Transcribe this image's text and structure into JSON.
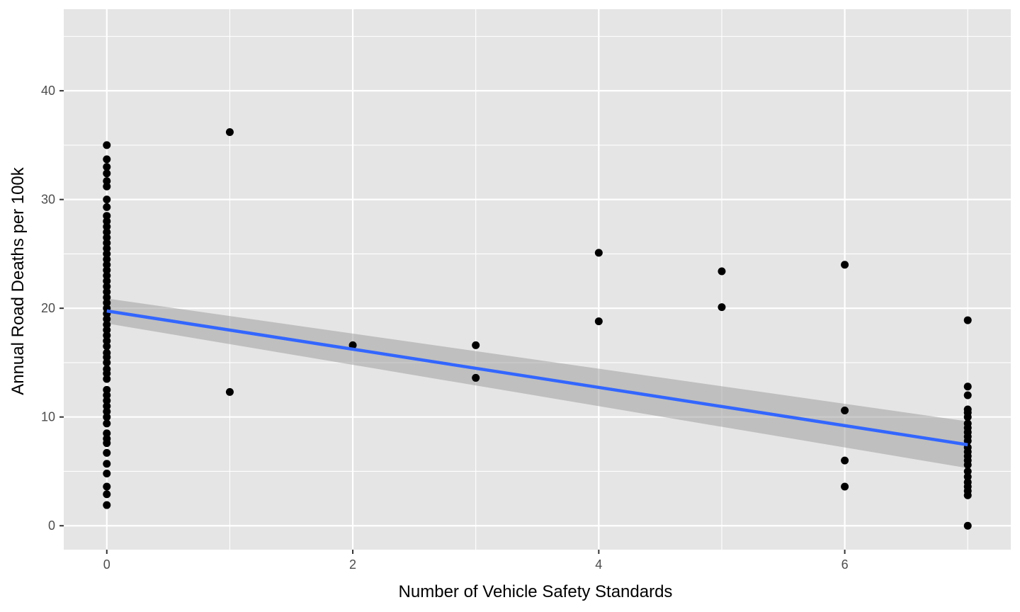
{
  "chart_data": {
    "type": "scatter",
    "title": "",
    "xlabel": "Number of Vehicle Safety Standards",
    "ylabel": "Annual Road Deaths per 100k",
    "xlim": [
      -0.35,
      7.35
    ],
    "ylim": [
      -2.2,
      47.5
    ],
    "x_major_ticks": [
      0,
      2,
      4,
      6
    ],
    "y_major_ticks": [
      0,
      10,
      20,
      30,
      40
    ],
    "x_minor_ticks": [
      1,
      3,
      5,
      7
    ],
    "y_minor_ticks": [
      5,
      15,
      25,
      35,
      45
    ],
    "grid": true,
    "legend": "none",
    "colors": {
      "panel": "#e5e5e5",
      "grid": "#ffffff",
      "points": "#000000",
      "fit_line": "#3366ff",
      "ribbon": "#999999"
    },
    "points": [
      {
        "x": 0,
        "values": [
          1.9,
          2.9,
          3.6,
          4.8,
          5.7,
          6.7,
          7.6,
          8.0,
          8.5,
          9.4,
          10.0,
          10.5,
          11.0,
          11.5,
          12.0,
          12.5,
          13.5,
          14.0,
          14.4,
          15.0,
          15.5,
          15.9,
          16.5,
          17.0,
          17.5,
          18.0,
          18.5,
          19.0,
          19.5,
          20.0,
          20.5,
          21.0,
          21.5,
          22.0,
          22.5,
          23.0,
          23.5,
          24.0,
          24.5,
          25.0,
          25.5,
          26.0,
          26.5,
          27.0,
          27.5,
          28.0,
          28.5,
          29.3,
          30.0,
          31.2,
          31.7,
          32.4,
          33.0,
          33.7,
          35.0
        ]
      },
      {
        "x": 1,
        "values": [
          12.3,
          36.2
        ]
      },
      {
        "x": 2,
        "values": [
          16.6
        ]
      },
      {
        "x": 3,
        "values": [
          13.6,
          16.6
        ]
      },
      {
        "x": 4,
        "values": [
          18.8,
          25.1
        ]
      },
      {
        "x": 5,
        "values": [
          20.1,
          23.4
        ]
      },
      {
        "x": 6,
        "values": [
          3.6,
          6.0,
          10.6,
          24.0
        ]
      },
      {
        "x": 7,
        "values": [
          0.0,
          2.8,
          3.2,
          3.6,
          4.0,
          4.5,
          5.0,
          5.6,
          6.0,
          6.4,
          6.8,
          7.2,
          7.8,
          8.2,
          8.6,
          9.0,
          9.4,
          10.0,
          10.4,
          10.7,
          12.0,
          12.8,
          18.9
        ]
      }
    ],
    "fit": {
      "method": "linear",
      "x": [
        0,
        7
      ],
      "y": [
        19.75,
        7.45
      ],
      "ci_lower": [
        18.6,
        5.3
      ],
      "ci_upper": [
        20.9,
        9.6
      ]
    }
  }
}
